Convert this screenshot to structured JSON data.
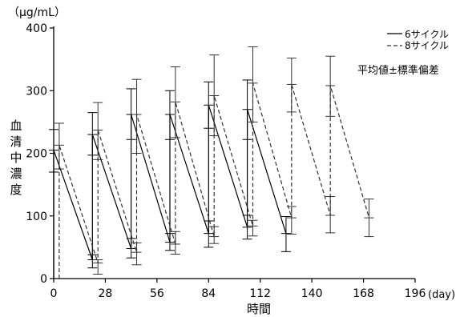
{
  "chart_data": {
    "type": "line",
    "unit_label": "（μg/mL）",
    "ylabel": "血清中濃度",
    "xlabel": "時間",
    "x_unit": "(day)",
    "annotation": "平均値±標準偏差",
    "ylim": [
      0,
      400
    ],
    "xlim": [
      0,
      196
    ],
    "yticks": [
      0,
      100,
      200,
      300,
      400
    ],
    "xticks": [
      0,
      28,
      56,
      84,
      112,
      140,
      168,
      196
    ],
    "legend_position": "top-right",
    "grid": false,
    "series": [
      {
        "name": "6サイクル",
        "style": "solid",
        "color": "#000000",
        "points": [
          {
            "x": 0,
            "y": 0
          },
          {
            "x": 0,
            "y": 205,
            "lo": 170,
            "hi": 238
          },
          {
            "x": 21,
            "y": 30,
            "lo": 17,
            "hi": 38
          },
          {
            "x": 21,
            "y": 230,
            "lo": 197,
            "hi": 265
          },
          {
            "x": 42,
            "y": 48,
            "lo": 33,
            "hi": 64
          },
          {
            "x": 42,
            "y": 262,
            "lo": 222,
            "hi": 303
          },
          {
            "x": 63,
            "y": 58,
            "lo": 45,
            "hi": 72
          },
          {
            "x": 63,
            "y": 262,
            "lo": 222,
            "hi": 300
          },
          {
            "x": 84,
            "y": 72,
            "lo": 50,
            "hi": 92
          },
          {
            "x": 84,
            "y": 277,
            "lo": 240,
            "hi": 314
          },
          {
            "x": 105,
            "y": 82,
            "lo": 63,
            "hi": 101
          },
          {
            "x": 105,
            "y": 270,
            "lo": 222,
            "hi": 317
          },
          {
            "x": 126,
            "y": 72,
            "lo": 43,
            "hi": 99
          }
        ]
      },
      {
        "name": "8サイクル",
        "style": "dashed",
        "color": "#333333",
        "points": [
          {
            "x": 3,
            "y": 0
          },
          {
            "x": 3,
            "y": 213,
            "lo": 175,
            "hi": 248
          },
          {
            "x": 24,
            "y": 25,
            "lo": 7,
            "hi": 30
          },
          {
            "x": 24,
            "y": 237,
            "lo": 190,
            "hi": 281
          },
          {
            "x": 45,
            "y": 42,
            "lo": 22,
            "hi": 57
          },
          {
            "x": 45,
            "y": 262,
            "lo": 200,
            "hi": 318
          },
          {
            "x": 66,
            "y": 55,
            "lo": 39,
            "hi": 75
          },
          {
            "x": 66,
            "y": 282,
            "lo": 225,
            "hi": 338
          },
          {
            "x": 87,
            "y": 67,
            "lo": 56,
            "hi": 83
          },
          {
            "x": 87,
            "y": 292,
            "lo": 228,
            "hi": 357
          },
          {
            "x": 108,
            "y": 84,
            "lo": 68,
            "hi": 93
          },
          {
            "x": 108,
            "y": 312,
            "lo": 250,
            "hi": 370
          },
          {
            "x": 129,
            "y": 97,
            "lo": 71,
            "hi": 115
          },
          {
            "x": 129,
            "y": 310,
            "lo": 266,
            "hi": 352
          },
          {
            "x": 150,
            "y": 101,
            "lo": 73,
            "hi": 131
          },
          {
            "x": 150,
            "y": 308,
            "lo": 259,
            "hi": 355
          },
          {
            "x": 171,
            "y": 97,
            "lo": 67,
            "hi": 127
          }
        ]
      }
    ]
  }
}
